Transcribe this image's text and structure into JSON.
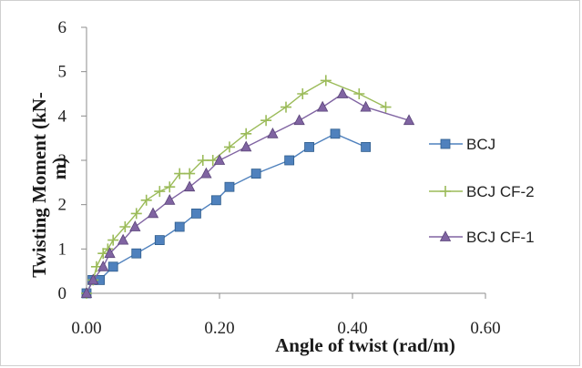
{
  "chart_data": {
    "type": "line",
    "xlabel": "Angle of twist (rad/m)",
    "ylabel": "Twisting Moment (kN-m)",
    "ylabel_lines": [
      "Twisting Moment (kN-",
      "m)"
    ],
    "xlim": [
      0,
      0.6
    ],
    "ylim": [
      0,
      6
    ],
    "x_ticks": [
      0,
      0.2,
      0.4,
      0.6
    ],
    "x_tick_labels": [
      "0.00",
      "0.20",
      "0.40",
      "0.60"
    ],
    "y_ticks": [
      0,
      1,
      2,
      3,
      4,
      5,
      6
    ],
    "y_tick_labels": [
      "0",
      "1",
      "2",
      "3",
      "4",
      "5",
      "6"
    ],
    "grid": false,
    "legend_position": "right",
    "series": [
      {
        "name": "BCJ",
        "color": "#4f81bd",
        "marker": "square",
        "x": [
          0.0,
          0.009,
          0.02,
          0.04,
          0.075,
          0.11,
          0.14,
          0.165,
          0.195,
          0.215,
          0.255,
          0.305,
          0.335,
          0.374,
          0.42
        ],
        "y": [
          0.0,
          0.3,
          0.3,
          0.6,
          0.9,
          1.2,
          1.5,
          1.8,
          2.1,
          2.4,
          2.7,
          3.0,
          3.3,
          3.6,
          3.3
        ]
      },
      {
        "name": "BCJ CF-2",
        "color": "#9bbb59",
        "marker": "plus",
        "x": [
          0.0,
          0.01,
          0.015,
          0.025,
          0.032,
          0.04,
          0.058,
          0.075,
          0.09,
          0.11,
          0.125,
          0.14,
          0.155,
          0.175,
          0.19,
          0.215,
          0.24,
          0.27,
          0.3,
          0.325,
          0.36,
          0.41,
          0.45
        ],
        "y": [
          0.0,
          0.3,
          0.6,
          0.9,
          1.0,
          1.2,
          1.5,
          1.8,
          2.1,
          2.3,
          2.4,
          2.7,
          2.7,
          3.0,
          3.0,
          3.3,
          3.6,
          3.9,
          4.2,
          4.5,
          4.8,
          4.5,
          4.2
        ]
      },
      {
        "name": "BCJ CF-1",
        "color": "#8064a2",
        "marker": "triangle",
        "x": [
          0.0,
          0.01,
          0.025,
          0.035,
          0.055,
          0.073,
          0.1,
          0.125,
          0.155,
          0.18,
          0.2,
          0.24,
          0.28,
          0.32,
          0.355,
          0.385,
          0.42,
          0.485
        ],
        "y": [
          0.0,
          0.3,
          0.6,
          0.9,
          1.2,
          1.5,
          1.8,
          2.1,
          2.4,
          2.7,
          3.0,
          3.3,
          3.6,
          3.9,
          4.2,
          4.5,
          4.2,
          3.9
        ]
      }
    ]
  }
}
